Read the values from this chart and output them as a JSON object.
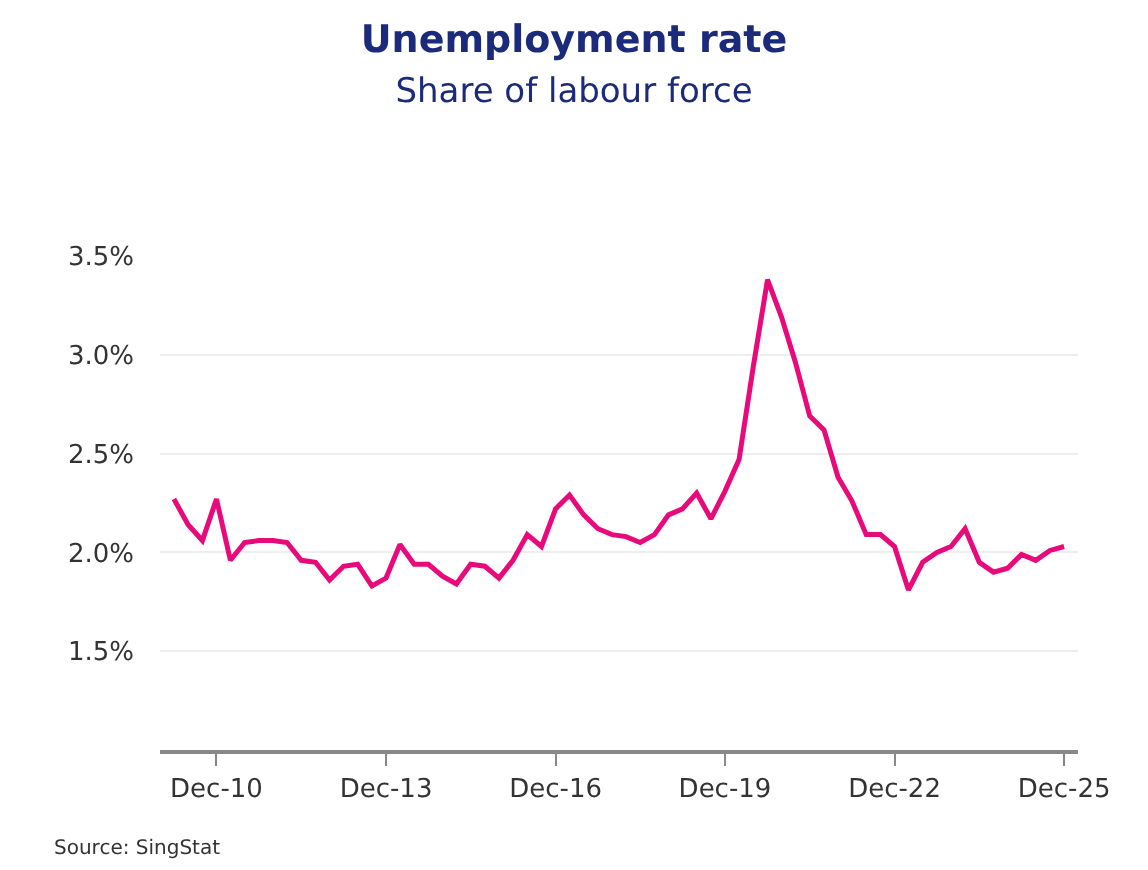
{
  "chart_data": {
    "type": "line",
    "title": "Unemployment rate",
    "subtitle": "Share of labour force",
    "x": [
      "2010-03",
      "2010-06",
      "2010-09",
      "2010-12",
      "2011-03",
      "2011-06",
      "2011-09",
      "2011-12",
      "2012-03",
      "2012-06",
      "2012-09",
      "2012-12",
      "2013-03",
      "2013-06",
      "2013-09",
      "2013-12",
      "2014-03",
      "2014-06",
      "2014-09",
      "2014-12",
      "2015-03",
      "2015-06",
      "2015-09",
      "2015-12",
      "2016-03",
      "2016-06",
      "2016-09",
      "2016-12",
      "2017-03",
      "2017-06",
      "2017-09",
      "2017-12",
      "2018-03",
      "2018-06",
      "2018-09",
      "2018-12",
      "2019-03",
      "2019-06",
      "2019-09",
      "2019-12",
      "2020-03",
      "2020-06",
      "2020-09",
      "2020-12",
      "2021-03",
      "2021-06",
      "2021-09",
      "2021-12",
      "2022-03",
      "2022-06",
      "2022-09",
      "2022-12",
      "2023-03",
      "2023-06",
      "2023-09",
      "2023-12",
      "2024-03",
      "2024-06",
      "2024-09",
      "2024-12",
      "2025-03",
      "2025-06",
      "2025-09",
      "2025-12"
    ],
    "series": [
      {
        "color": "#e8097a",
        "values": [
          2.27,
          2.14,
          2.06,
          2.27,
          1.96,
          2.05,
          2.06,
          2.06,
          2.05,
          1.96,
          1.95,
          1.86,
          1.93,
          1.94,
          1.83,
          1.87,
          2.04,
          1.94,
          1.94,
          1.88,
          1.84,
          1.94,
          1.93,
          1.87,
          1.96,
          2.09,
          2.03,
          2.22,
          2.29,
          2.19,
          2.12,
          2.09,
          2.08,
          2.05,
          2.09,
          2.19,
          2.22,
          2.3,
          2.17,
          2.31,
          2.47,
          2.94,
          3.38,
          3.19,
          2.96,
          2.69,
          2.62,
          2.38,
          2.26,
          2.09,
          2.09,
          2.03,
          1.81,
          1.95,
          2.0,
          2.03,
          2.12,
          1.95,
          1.9,
          1.92,
          1.99,
          1.96,
          2.01,
          2.03
        ]
      }
    ],
    "xlim": [
      "2009-12",
      "2026-03"
    ],
    "xticks": [
      {
        "value": "2010-12",
        "label": "Dec-10"
      },
      {
        "value": "2013-12",
        "label": "Dec-13"
      },
      {
        "value": "2016-12",
        "label": "Dec-16"
      },
      {
        "value": "2019-12",
        "label": "Dec-19"
      },
      {
        "value": "2022-12",
        "label": "Dec-22"
      },
      {
        "value": "2025-12",
        "label": "Dec-25"
      }
    ],
    "ylim": [
      1.0,
      3.5
    ],
    "yticks": [
      {
        "value": 1.5,
        "label": "1.5%"
      },
      {
        "value": 2.0,
        "label": "2.0%"
      },
      {
        "value": 2.5,
        "label": "2.5%"
      },
      {
        "value": 3.0,
        "label": "3.0%"
      },
      {
        "value": 3.5,
        "label": "3.5%"
      }
    ],
    "grid": "y",
    "marker": "none",
    "line_style": "solid",
    "annotations": [
      "Source: SingStat"
    ]
  }
}
